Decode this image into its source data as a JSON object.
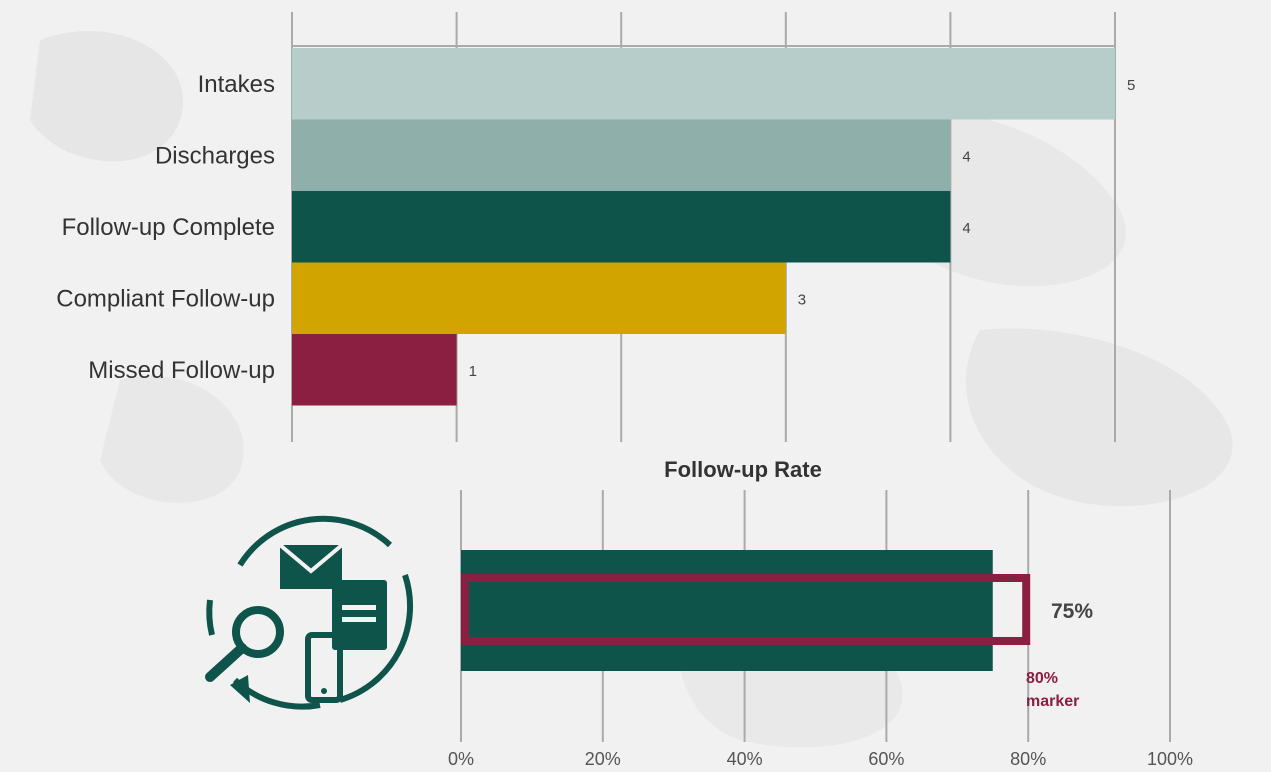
{
  "colors": {
    "intakes": "#b6cdc9",
    "discharges": "#8fb0aa",
    "followup_complete": "#0e544b",
    "compliant": "#d1a400",
    "missed": "#8b1f41",
    "rate_bar": "#0e544b",
    "marker": "#8b1f41",
    "grid": "#aaaaaa"
  },
  "chart_data": [
    {
      "type": "bar",
      "orientation": "horizontal",
      "categories": [
        "Intakes",
        "Discharges",
        "Follow-up Complete",
        "Compliant Follow-up",
        "Missed Follow-up"
      ],
      "values": [
        5,
        4,
        4,
        3,
        1
      ],
      "data_labels": [
        "5",
        "4",
        "4",
        "3",
        "1"
      ],
      "xlim": [
        0,
        5
      ],
      "grid": true
    },
    {
      "type": "bar",
      "orientation": "horizontal",
      "title": "Follow-up Rate",
      "value": 0.75,
      "value_label": "75%",
      "marker": {
        "value": 0.8,
        "label_line1": "80%",
        "label_line2": "marker"
      },
      "xticks": [
        "0%",
        "20%",
        "40%",
        "60%",
        "80%",
        "100%"
      ],
      "xlim": [
        0,
        1
      ],
      "grid": true
    }
  ],
  "icon": {
    "name": "follow-up-communication-icon"
  }
}
